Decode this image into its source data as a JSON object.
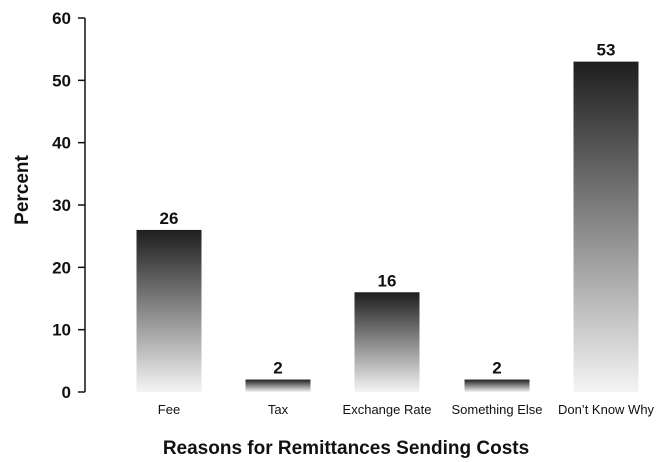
{
  "chart_data": {
    "type": "bar",
    "categories": [
      "Fee",
      "Tax",
      "Exchange Rate",
      "Something Else",
      "Don’t Know Why"
    ],
    "values": [
      26,
      2,
      16,
      2,
      53
    ],
    "value_labels": [
      "26",
      "2",
      "16",
      "2",
      "53"
    ],
    "title": "",
    "xlabel": "Reasons for Remittances Sending Costs",
    "ylabel": "Percent",
    "ylim": [
      0,
      60
    ],
    "yticks": [
      "0",
      "10",
      "20",
      "30",
      "40",
      "50",
      "60"
    ],
    "grid": false,
    "bar_fill": "gradient dark-top to white-bottom",
    "colors": {
      "bar_top": "#1e1e1e",
      "bar_bottom": "#f4f4f4",
      "axis": "#111111"
    }
  }
}
